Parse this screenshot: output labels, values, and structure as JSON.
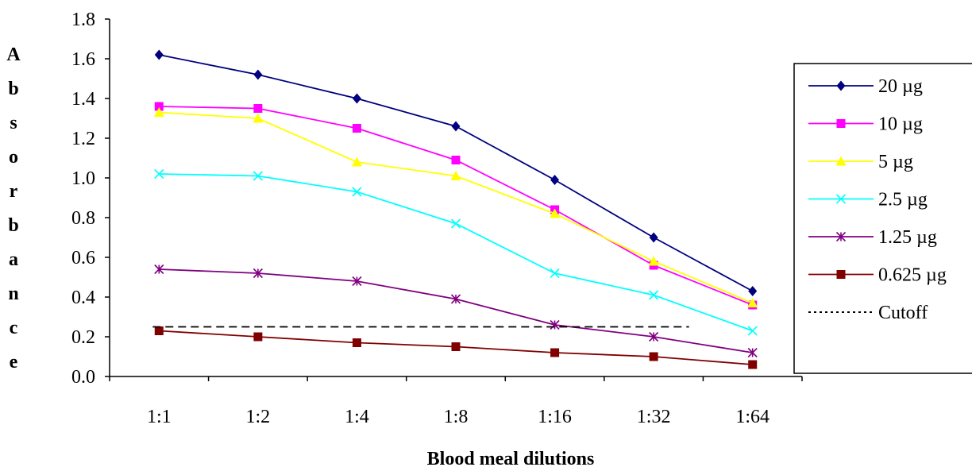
{
  "chart_data": {
    "type": "line",
    "title": "",
    "xlabel": "Blood meal dilutions",
    "ylabel": "Absorbance",
    "ylim": [
      0,
      1.8
    ],
    "yticks": [
      "0.0",
      "0.2",
      "0.4",
      "0.6",
      "0.8",
      "1.0",
      "1.2",
      "1.4",
      "1.6",
      "1.8"
    ],
    "categories": [
      "1:1",
      "1:2",
      "1:4",
      "1:8",
      "1:16",
      "1:32",
      "1:64"
    ],
    "legend_position": "right",
    "series": [
      {
        "name": "20 µg",
        "color": "#000080",
        "marker": "diamond",
        "values": [
          1.62,
          1.52,
          1.4,
          1.26,
          0.99,
          0.7,
          0.43
        ]
      },
      {
        "name": "10 µg",
        "color": "#ff00ff",
        "marker": "square",
        "values": [
          1.36,
          1.35,
          1.25,
          1.09,
          0.84,
          0.56,
          0.36
        ]
      },
      {
        "name": "5 µg",
        "color": "#ffff00",
        "marker": "triangle",
        "values": [
          1.33,
          1.3,
          1.08,
          1.01,
          0.82,
          0.58,
          0.37
        ]
      },
      {
        "name": "2.5 µg",
        "color": "#00ffff",
        "marker": "x",
        "values": [
          1.02,
          1.01,
          0.93,
          0.77,
          0.52,
          0.41,
          0.23
        ]
      },
      {
        "name": "1.25 µg",
        "color": "#800080",
        "marker": "star",
        "values": [
          0.54,
          0.52,
          0.48,
          0.39,
          0.26,
          0.2,
          0.12
        ]
      },
      {
        "name": "0.625 µg",
        "color": "#800000",
        "marker": "square",
        "values": [
          0.23,
          0.2,
          0.17,
          0.15,
          0.12,
          0.1,
          0.06
        ]
      }
    ],
    "cutoff": {
      "name": "Cutoff",
      "value": 0.25,
      "color": "#000000"
    }
  }
}
